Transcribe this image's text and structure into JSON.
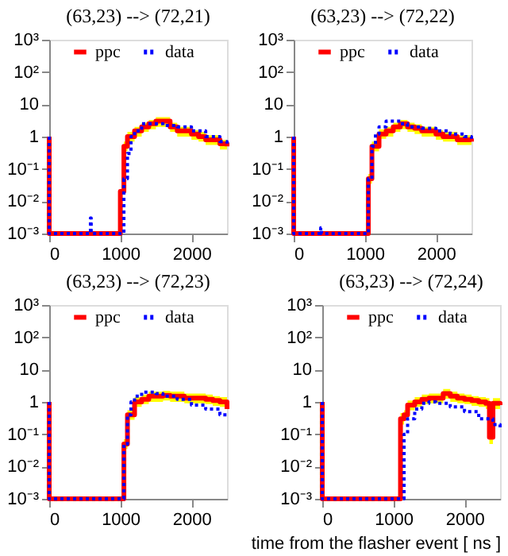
{
  "chart_data": [
    {
      "type": "step",
      "title": "(63,23) --> (72,21)",
      "log": "y",
      "legend": "top",
      "xlim": [
        0,
        2500
      ],
      "xticks": [
        0,
        1000,
        2000
      ],
      "ylim": [
        0.001,
        1000
      ],
      "yticks": [
        {
          "value": 1000,
          "label": "10³"
        },
        {
          "value": 100,
          "label": "10²"
        },
        10,
        1,
        {
          "value": 0.1,
          "label": "10⁻¹"
        },
        {
          "value": 0.01,
          "label": "10⁻²"
        },
        {
          "value": 0.001,
          "label": "10⁻³"
        }
      ],
      "series": [
        {
          "name": "ppc",
          "color": "#ff0000",
          "line_style": "solid",
          "x": [
            0,
            0,
            1000,
            1000,
            1050,
            1100,
            1200,
            1300,
            1400,
            1500,
            1600,
            1700,
            1800,
            1900,
            2000,
            2100,
            2200,
            2300,
            2400,
            2500
          ],
          "values": [
            1,
            0.001,
            0.001,
            0.02,
            0.5,
            1,
            1.5,
            2,
            2.5,
            3,
            3,
            2,
            1.5,
            1.5,
            1.2,
            1,
            0.8,
            0.8,
            0.6,
            0.5
          ],
          "lower": [
            null,
            null,
            null,
            null,
            0.35,
            0.7,
            1,
            1.4,
            1.7,
            2,
            2,
            1.4,
            1,
            1,
            0.8,
            0.7,
            0.55,
            0.55,
            0.4,
            0.35
          ],
          "upper": [
            null,
            null,
            null,
            null,
            0.7,
            1.4,
            2,
            2.7,
            3.3,
            4,
            4,
            2.7,
            2,
            2,
            1.6,
            1.4,
            1.1,
            1.1,
            0.8,
            0.7
          ]
        },
        {
          "name": "data",
          "color": "#0000ff",
          "line_style": "dotted",
          "x": [
            0,
            0,
            570,
            580,
            590,
            1000,
            1050,
            1100,
            1150,
            1200,
            1300,
            1400,
            1500,
            1600,
            1800,
            2000,
            2200,
            2400,
            2500
          ],
          "values": [
            1,
            0.001,
            0.001,
            0.003,
            0.001,
            0.001,
            0.05,
            0.3,
            1,
            1.5,
            2.5,
            2.5,
            2.5,
            2.2,
            2,
            1.5,
            1,
            0.7,
            0.5
          ]
        }
      ]
    },
    {
      "type": "step",
      "title": "(63,23) --> (72,22)",
      "log": "y",
      "legend": "top",
      "xlim": [
        0,
        2500
      ],
      "xticks": [
        0,
        1000,
        2000
      ],
      "ylim": [
        0.001,
        1000
      ],
      "yticks": [
        {
          "value": 1000,
          "label": "10³"
        },
        {
          "value": 100,
          "label": "10²"
        },
        10,
        1,
        {
          "value": 0.1,
          "label": "10⁻¹"
        },
        {
          "value": 0.01,
          "label": "10⁻²"
        },
        {
          "value": 0.001,
          "label": "10⁻³"
        }
      ],
      "series": [
        {
          "name": "ppc",
          "color": "#ff0000",
          "line_style": "solid",
          "x": [
            0,
            0,
            1000,
            1050,
            1100,
            1200,
            1300,
            1400,
            1500,
            1600,
            1700,
            1800,
            1900,
            2000,
            2100,
            2200,
            2300,
            2400,
            2500
          ],
          "values": [
            1,
            0.001,
            0.001,
            0.05,
            0.5,
            1.2,
            1.5,
            2,
            2.5,
            2,
            1.8,
            1.5,
            1.5,
            1.2,
            1,
            1,
            0.8,
            0.8,
            0.7
          ],
          "lower": [
            null,
            null,
            null,
            0.035,
            0.35,
            0.85,
            1,
            1.4,
            1.7,
            1.4,
            1.2,
            1,
            1,
            0.8,
            0.7,
            0.7,
            0.55,
            0.55,
            0.5
          ],
          "upper": [
            null,
            null,
            null,
            0.07,
            0.7,
            1.7,
            2,
            2.7,
            3.3,
            2.7,
            2.4,
            2,
            2,
            1.6,
            1.4,
            1.4,
            1.1,
            1.1,
            1
          ]
        },
        {
          "name": "data",
          "color": "#0000ff",
          "line_style": "dotted",
          "x": [
            0,
            0,
            370,
            380,
            390,
            1000,
            1050,
            1100,
            1150,
            1200,
            1300,
            1400,
            1500,
            1600,
            1800,
            2000,
            2200,
            2400,
            2500
          ],
          "values": [
            1,
            0.001,
            0.001,
            0.0015,
            0.001,
            0.001,
            0.05,
            0.5,
            1.2,
            2,
            3,
            3,
            2.5,
            2,
            1.8,
            1.5,
            1.2,
            1,
            0.8
          ]
        }
      ]
    },
    {
      "type": "step",
      "title": "(63,23) --> (72,23)",
      "log": "y",
      "legend": "top",
      "xlim": [
        0,
        2500
      ],
      "xticks": [
        0,
        1000,
        2000
      ],
      "ylim": [
        0.001,
        1000
      ],
      "yticks": [
        {
          "value": 1000,
          "label": "10³"
        },
        {
          "value": 100,
          "label": "10²"
        },
        10,
        1,
        {
          "value": 0.1,
          "label": "10⁻¹"
        },
        {
          "value": 0.01,
          "label": "10⁻²"
        },
        {
          "value": 0.001,
          "label": "10⁻³"
        }
      ],
      "series": [
        {
          "name": "ppc",
          "color": "#ff0000",
          "line_style": "solid",
          "x": [
            0,
            0,
            1000,
            1050,
            1100,
            1200,
            1300,
            1400,
            1500,
            1600,
            1700,
            1800,
            1900,
            2000,
            2100,
            2200,
            2300,
            2400,
            2500
          ],
          "values": [
            1,
            0.001,
            0.001,
            0.05,
            0.4,
            1,
            1.2,
            1.5,
            1.5,
            1.6,
            1.5,
            1.5,
            1.3,
            1.3,
            1.3,
            1.2,
            1.1,
            1,
            0.6
          ],
          "lower": [
            null,
            null,
            null,
            0.035,
            0.28,
            0.7,
            0.85,
            1,
            1,
            1.1,
            1,
            1,
            0.9,
            0.9,
            0.9,
            0.85,
            0.75,
            0.7,
            0.4
          ],
          "upper": [
            null,
            null,
            null,
            0.07,
            0.55,
            1.4,
            1.7,
            2.1,
            2.1,
            2.2,
            2.1,
            2.1,
            1.8,
            1.8,
            1.8,
            1.7,
            1.5,
            1.4,
            0.85
          ]
        },
        {
          "name": "data",
          "color": "#0000ff",
          "line_style": "dotted",
          "x": [
            0,
            0,
            1000,
            1050,
            1100,
            1150,
            1200,
            1300,
            1400,
            1500,
            1600,
            1800,
            2000,
            2200,
            2400,
            2500
          ],
          "values": [
            1,
            0.001,
            0.001,
            0.05,
            0.4,
            1,
            1.5,
            2,
            2,
            1.8,
            1.5,
            1.2,
            0.8,
            0.6,
            0.4,
            0.35
          ]
        }
      ]
    },
    {
      "type": "step",
      "title": "(63,23) --> (72,24)",
      "xlabel": "time from the flasher event [ ns ]",
      "log": "y",
      "legend": "top",
      "xlim": [
        0,
        2500
      ],
      "xticks": [
        0,
        1000,
        2000
      ],
      "ylim": [
        0.001,
        1000
      ],
      "yticks": [
        {
          "value": 1000,
          "label": "10³"
        },
        {
          "value": 100,
          "label": "10²"
        },
        10,
        1,
        {
          "value": 0.1,
          "label": "10⁻¹"
        },
        {
          "value": 0.01,
          "label": "10⁻²"
        },
        {
          "value": 0.001,
          "label": "10⁻³"
        }
      ],
      "series": [
        {
          "name": "ppc",
          "color": "#ff0000",
          "line_style": "solid",
          "x": [
            0,
            0,
            1100,
            1100,
            1150,
            1200,
            1300,
            1400,
            1500,
            1600,
            1700,
            1800,
            1900,
            2000,
            2100,
            2200,
            2300,
            2350,
            2400,
            2500
          ],
          "values": [
            1,
            0.001,
            0.001,
            0.3,
            0.4,
            0.8,
            1,
            1.2,
            1.3,
            1.3,
            1.8,
            1.5,
            1.3,
            1.2,
            1.1,
            1,
            0.9,
            0.08,
            0.9,
            0.8
          ],
          "lower": [
            null,
            null,
            null,
            0.2,
            0.28,
            0.55,
            0.7,
            0.85,
            0.9,
            0.9,
            1.25,
            1,
            0.9,
            0.85,
            0.75,
            0.7,
            0.6,
            0.05,
            0.6,
            0.55
          ],
          "upper": [
            null,
            null,
            null,
            0.45,
            0.55,
            1.1,
            1.4,
            1.7,
            1.8,
            1.8,
            2.5,
            2.1,
            1.8,
            1.7,
            1.5,
            1.4,
            1.3,
            0.11,
            1.3,
            1.1
          ]
        },
        {
          "name": "data",
          "color": "#0000ff",
          "line_style": "dotted",
          "x": [
            0,
            0,
            1100,
            1150,
            1200,
            1300,
            1400,
            1500,
            1600,
            1800,
            2000,
            2200,
            2400,
            2500
          ],
          "values": [
            1,
            0.001,
            0.001,
            0.1,
            0.3,
            0.6,
            0.9,
            1,
            0.9,
            0.7,
            0.5,
            0.3,
            0.2,
            0.15
          ]
        }
      ]
    }
  ]
}
